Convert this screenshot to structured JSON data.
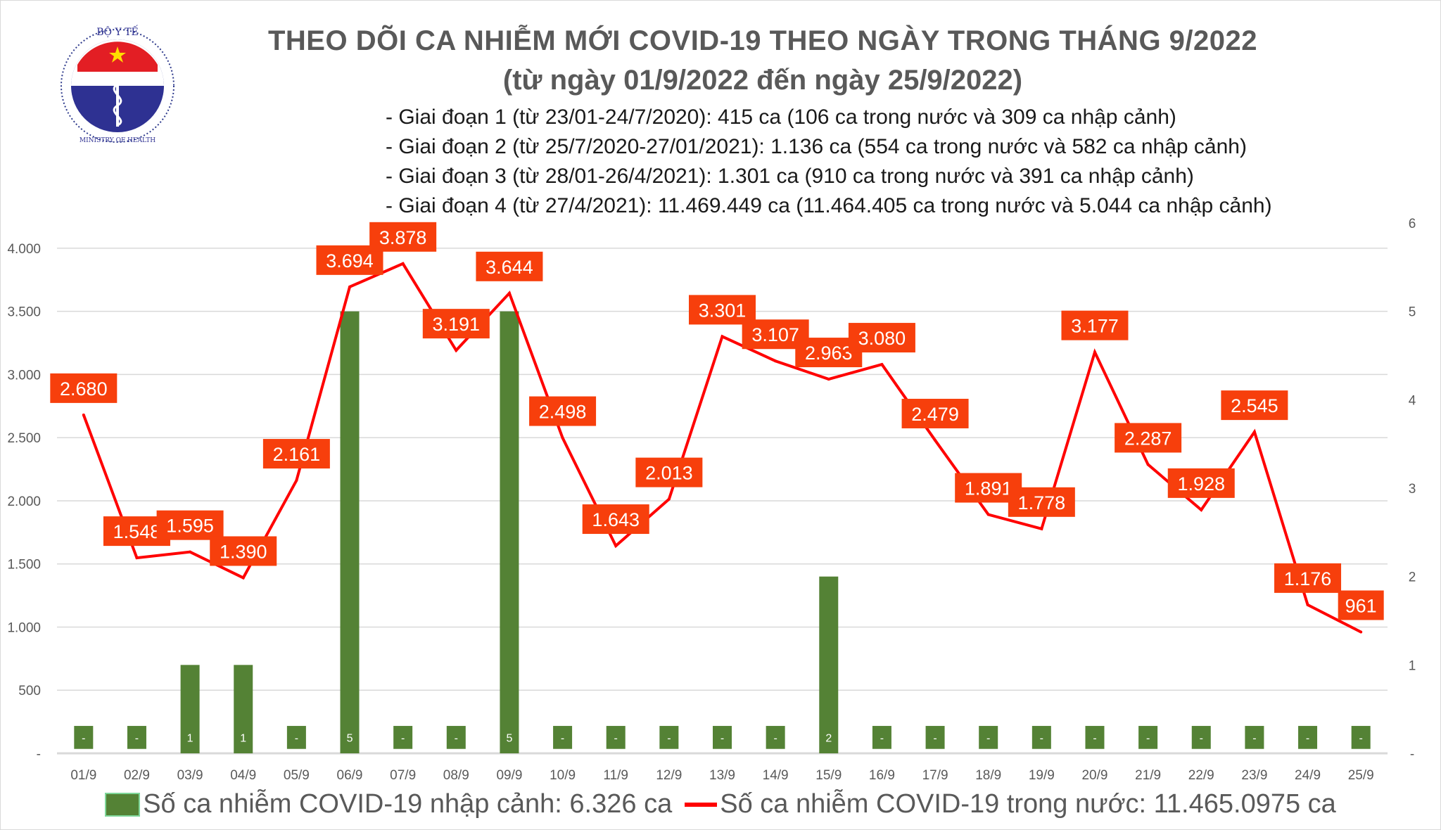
{
  "title": "THEO DÕI CA NHIỄM MỚI COVID-19 THEO NGÀY TRONG THÁNG 9/2022",
  "subtitle": "(từ ngày 01/9/2022 đến ngày 25/9/2022)",
  "bullets": [
    "- Giai đoạn 1 (từ 23/01-24/7/2020): 415 ca (106 ca trong nước và 309 ca nhập cảnh)",
    "- Giai đoạn 2 (từ 25/7/2020-27/01/2021): 1.136 ca (554 ca trong nước và 582 ca nhập cảnh)",
    "- Giai đoạn 3 (từ 28/01-26/4/2021): 1.301 ca (910 ca trong nước và 391 ca nhập cảnh)",
    "- Giai đoạn 4 (từ 27/4/2021): 11.469.449 ca (11.464.405 ca trong nước và 5.044 ca nhập cảnh)"
  ],
  "logo": {
    "top_text": "BỘ Y TẾ",
    "bottom_text": "MINISTRY OF HEALTH"
  },
  "colors": {
    "bar": "#548235",
    "line": "#ff0000",
    "label_bg": "#f73f0c",
    "grid": "#d9d9d9",
    "axis_text": "#595959"
  },
  "chart_data": {
    "type": "bar+line",
    "categories": [
      "01/9",
      "02/9",
      "03/9",
      "04/9",
      "05/9",
      "06/9",
      "07/9",
      "08/9",
      "09/9",
      "10/9",
      "11/9",
      "12/9",
      "13/9",
      "14/9",
      "15/9",
      "16/9",
      "17/9",
      "18/9",
      "19/9",
      "20/9",
      "21/9",
      "22/9",
      "23/9",
      "24/9",
      "25/9"
    ],
    "series": [
      {
        "name": "Số ca nhiễm COVID-19 nhập cảnh: 6.326 ca",
        "type": "bar",
        "axis": "right",
        "values": [
          0,
          0,
          1,
          1,
          0,
          5,
          0,
          0,
          5,
          0,
          0,
          0,
          0,
          0,
          2,
          0,
          0,
          0,
          0,
          0,
          0,
          0,
          0,
          0,
          0
        ],
        "labels": [
          "-",
          "-",
          "1",
          "1",
          "-",
          "5",
          "-",
          "-",
          "5",
          "-",
          "-",
          "-",
          "-",
          "-",
          "2",
          "-",
          "-",
          "-",
          "-",
          "-",
          "-",
          "-",
          "-",
          "-",
          "-"
        ]
      },
      {
        "name": "Số ca nhiễm COVID-19 trong nước: 11.465.0975 ca",
        "type": "line",
        "axis": "left",
        "values": [
          2680,
          1548,
          1595,
          1390,
          2161,
          3694,
          3878,
          3191,
          3644,
          2498,
          1643,
          2013,
          3301,
          3107,
          2963,
          3080,
          2479,
          1891,
          1778,
          3177,
          2287,
          1928,
          2545,
          1176,
          961
        ],
        "labels": [
          "2.680",
          "1.548",
          "1.595",
          "1.390",
          "2.161",
          "3.694",
          "3.878",
          "3.191",
          "3.644",
          "2.498",
          "1.643",
          "2.013",
          "3.301",
          "3.107",
          "2.963",
          "3.080",
          "2.479",
          "1.891",
          "1.778",
          "3.177",
          "2.287",
          "1.928",
          "2.545",
          "1.176",
          "961"
        ]
      }
    ],
    "left_axis": {
      "ylim": [
        0,
        4200
      ],
      "ticks": [
        0,
        500,
        1000,
        1500,
        2000,
        2500,
        3000,
        3500,
        4000
      ],
      "tick_labels": [
        "-",
        "500",
        "1.000",
        "1.500",
        "2.000",
        "2.500",
        "3.000",
        "3.500",
        "4.000"
      ]
    },
    "right_axis": {
      "ylim": [
        0,
        6
      ],
      "ticks": [
        0,
        1,
        2,
        3,
        4,
        5,
        6
      ],
      "tick_labels": [
        "-",
        "1",
        "2",
        "3",
        "4",
        "5",
        "6"
      ]
    },
    "grid": true,
    "legend_position": "bottom"
  }
}
